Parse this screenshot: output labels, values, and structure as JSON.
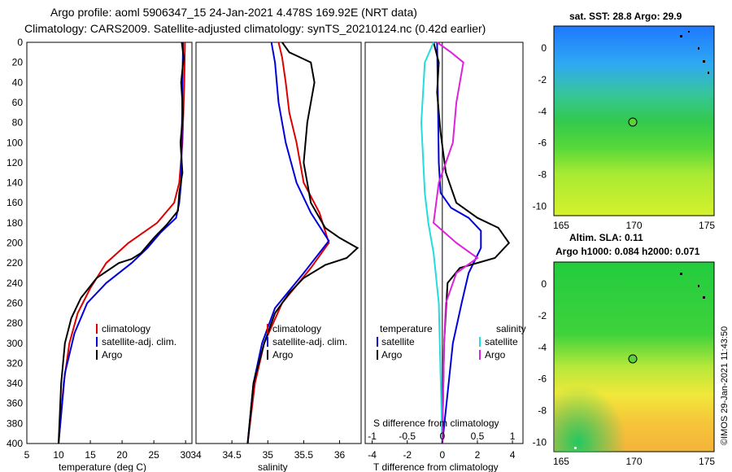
{
  "title_line1": "Argo profile: aoml 5906347_15 24-Jan-2021 4.478S 169.92E (NRT data)",
  "title_line2": "Climatology: CARS2009. Satellite-adjusted climatology: synTS_20210124.nc (0.42d earlier)",
  "colors": {
    "climatology": "#dd0000",
    "satellite": "#0000dd",
    "argo": "#000000",
    "cyan": "#22dddd",
    "magenta": "#dd22dd"
  },
  "depth_ticks": [
    "0",
    "20",
    "40",
    "60",
    "80",
    "100",
    "120",
    "140",
    "160",
    "180",
    "200",
    "220",
    "240",
    "260",
    "280",
    "300",
    "320",
    "340",
    "360",
    "380",
    "400"
  ],
  "chart_data": [
    {
      "type": "line",
      "panel": "temperature",
      "xlabel": "temperature (deg C)",
      "xlim": [
        5,
        31
      ],
      "xticks": [
        {
          "v": 5,
          "t": "5"
        },
        {
          "v": 10,
          "t": "10"
        },
        {
          "v": 15,
          "t": "15"
        },
        {
          "v": 20,
          "t": "20"
        },
        {
          "v": 25,
          "t": "25"
        },
        {
          "v": 30,
          "t": "30"
        }
      ],
      "ylim": [
        0,
        400
      ],
      "legend": [
        "climatology",
        "satellite-adj. clim.",
        "Argo"
      ],
      "series": [
        {
          "name": "climatology",
          "color": "climatology",
          "points": [
            [
              29.9,
              0
            ],
            [
              29.8,
              40
            ],
            [
              29.5,
              100
            ],
            [
              29.0,
              140
            ],
            [
              28.2,
              160
            ],
            [
              25.5,
              180
            ],
            [
              21,
              200
            ],
            [
              17.5,
              220
            ],
            [
              15,
              245
            ],
            [
              13,
              270
            ],
            [
              11.7,
              300
            ],
            [
              10.8,
              340
            ],
            [
              10.0,
              400
            ]
          ]
        },
        {
          "name": "satellite-adj. clim.",
          "color": "satellite",
          "points": [
            [
              29.6,
              0
            ],
            [
              29.5,
              40
            ],
            [
              29.4,
              100
            ],
            [
              29.3,
              140
            ],
            [
              29.0,
              160
            ],
            [
              28.5,
              175
            ],
            [
              26,
              190
            ],
            [
              24,
              205
            ],
            [
              21.5,
              220
            ],
            [
              17.5,
              240
            ],
            [
              14.5,
              260
            ],
            [
              12.5,
              290
            ],
            [
              11,
              330
            ],
            [
              10.0,
              400
            ]
          ]
        },
        {
          "name": "Argo",
          "color": "argo",
          "points": [
            [
              29.4,
              0
            ],
            [
              29.7,
              15
            ],
            [
              29.3,
              40
            ],
            [
              29.6,
              70
            ],
            [
              29.2,
              100
            ],
            [
              29.5,
              130
            ],
            [
              29.0,
              150
            ],
            [
              28.8,
              168
            ],
            [
              27,
              182
            ],
            [
              25,
              195
            ],
            [
              23,
              210
            ],
            [
              21.5,
              216
            ],
            [
              19.5,
              220
            ],
            [
              16,
              235
            ],
            [
              13.5,
              255
            ],
            [
              12,
              275
            ],
            [
              11,
              300
            ],
            [
              10.4,
              340
            ],
            [
              10.0,
              400
            ]
          ]
        }
      ]
    },
    {
      "type": "line",
      "panel": "salinity",
      "xlabel": "salinity",
      "xlim": [
        34,
        36.3
      ],
      "xticks": [
        {
          "v": 34,
          "t": "34"
        },
        {
          "v": 34.5,
          "t": "34.5"
        },
        {
          "v": 35,
          "t": "35"
        },
        {
          "v": 35.5,
          "t": "35.5"
        },
        {
          "v": 36,
          "t": "36"
        }
      ],
      "ylim": [
        0,
        400
      ],
      "legend": [
        "climatology",
        "satellite-adj. clim.",
        "Argo"
      ],
      "series": [
        {
          "name": "climatology",
          "color": "climatology",
          "points": [
            [
              35.15,
              0
            ],
            [
              35.2,
              15
            ],
            [
              35.25,
              40
            ],
            [
              35.3,
              70
            ],
            [
              35.4,
              100
            ],
            [
              35.5,
              140
            ],
            [
              35.72,
              170
            ],
            [
              35.85,
              200
            ],
            [
              35.6,
              225
            ],
            [
              35.2,
              260
            ],
            [
              34.95,
              300
            ],
            [
              34.82,
              340
            ],
            [
              34.72,
              400
            ]
          ]
        },
        {
          "name": "satellite-adj. clim.",
          "color": "satellite",
          "points": [
            [
              35.05,
              0
            ],
            [
              35.1,
              20
            ],
            [
              35.15,
              60
            ],
            [
              35.25,
              100
            ],
            [
              35.4,
              140
            ],
            [
              35.6,
              170
            ],
            [
              35.85,
              198
            ],
            [
              35.5,
              230
            ],
            [
              35.1,
              265
            ],
            [
              34.92,
              300
            ],
            [
              34.8,
              340
            ],
            [
              34.72,
              400
            ]
          ]
        },
        {
          "name": "Argo",
          "color": "argo",
          "points": [
            [
              35.2,
              0
            ],
            [
              35.3,
              10
            ],
            [
              35.45,
              15
            ],
            [
              35.6,
              20
            ],
            [
              35.65,
              40
            ],
            [
              35.55,
              80
            ],
            [
              35.5,
              120
            ],
            [
              35.6,
              160
            ],
            [
              35.8,
              185
            ],
            [
              36.0,
              195
            ],
            [
              36.25,
              205
            ],
            [
              36.1,
              215
            ],
            [
              35.8,
              222
            ],
            [
              35.5,
              235
            ],
            [
              35.3,
              250
            ],
            [
              35.1,
              270
            ],
            [
              34.95,
              300
            ],
            [
              34.8,
              340
            ],
            [
              34.72,
              400
            ]
          ]
        }
      ]
    },
    {
      "type": "line",
      "panel": "differences",
      "xlabel": "T difference from climatology",
      "xlim": [
        -4.4,
        4.6
      ],
      "xticks": [
        {
          "v": -4,
          "t": "-4"
        },
        {
          "v": -2,
          "t": "-2"
        },
        {
          "v": 0,
          "t": "0"
        },
        {
          "v": 2,
          "t": "2"
        },
        {
          "v": 4,
          "t": "4"
        }
      ],
      "xlabel_top": "S difference from climatology",
      "xticks_top": [
        {
          "v": -4,
          "t": "-1"
        },
        {
          "v": -2,
          "t": "-0.5"
        },
        {
          "v": 0,
          "t": "0"
        },
        {
          "v": 2,
          "t": "0.5"
        },
        {
          "v": 4,
          "t": "1"
        }
      ],
      "ylim": [
        0,
        400
      ],
      "legend_left_title": "temperature",
      "legend_right_title": "salinity",
      "legend_left": [
        "satellite",
        "Argo"
      ],
      "legend_right": [
        "satellite",
        "Argo"
      ],
      "series": [
        {
          "name": "temperature satellite",
          "color": "satellite",
          "points": [
            [
              -0.3,
              0
            ],
            [
              -0.25,
              60
            ],
            [
              -0.2,
              120
            ],
            [
              -0.1,
              150
            ],
            [
              0.5,
              165
            ],
            [
              1.5,
              175
            ],
            [
              2.2,
              188
            ],
            [
              2.2,
              205
            ],
            [
              1.5,
              230
            ],
            [
              1.1,
              260
            ],
            [
              0.6,
              300
            ],
            [
              0.3,
              350
            ],
            [
              0,
              400
            ]
          ]
        },
        {
          "name": "temperature Argo",
          "color": "argo",
          "points": [
            [
              -0.5,
              0
            ],
            [
              -0.2,
              20
            ],
            [
              -0.3,
              50
            ],
            [
              -0.1,
              90
            ],
            [
              0.2,
              130
            ],
            [
              0.8,
              160
            ],
            [
              2.0,
              175
            ],
            [
              3.2,
              185
            ],
            [
              3.8,
              200
            ],
            [
              3.0,
              215
            ],
            [
              1.0,
              225
            ],
            [
              0.3,
              240
            ],
            [
              0.1,
              300
            ],
            [
              0,
              400
            ]
          ]
        },
        {
          "name": "salinity satellite",
          "color": "cyan",
          "points": [
            [
              -0.5,
              0
            ],
            [
              -1.0,
              20
            ],
            [
              -1.2,
              80
            ],
            [
              -1.0,
              150
            ],
            [
              -0.8,
              180
            ],
            [
              -0.5,
              210
            ],
            [
              -0.2,
              260
            ],
            [
              0,
              400
            ]
          ]
        },
        {
          "name": "salinity Argo",
          "color": "magenta",
          "points": [
            [
              -0.3,
              0
            ],
            [
              0.5,
              10
            ],
            [
              1.2,
              20
            ],
            [
              0.8,
              60
            ],
            [
              0.6,
              100
            ],
            [
              -0.2,
              140
            ],
            [
              -0.5,
              180
            ],
            [
              0.8,
              200
            ],
            [
              2.0,
              215
            ],
            [
              0.8,
              230
            ],
            [
              0.2,
              260
            ],
            [
              0.1,
              300
            ],
            [
              0,
              400
            ]
          ]
        }
      ]
    },
    {
      "type": "heatmap",
      "panel": "sst_map",
      "title": "sat. SST: 28.8 Argo: 29.9",
      "xticks": [
        "165",
        "170",
        "175"
      ],
      "yticks": [
        "0",
        "-2",
        "-4",
        "-6",
        "-8",
        "-10"
      ],
      "marker_lon": 170,
      "marker_lat": -4.5
    },
    {
      "type": "heatmap",
      "panel": "sla_map",
      "title": "Altim. SLA: 0.11",
      "subtitle": "Argo h1000: 0.084 h2000: 0.071",
      "xticks": [
        "165",
        "170",
        "175"
      ],
      "yticks": [
        "0",
        "-2",
        "-4",
        "-6",
        "-8",
        "-10"
      ],
      "marker_lon": 170,
      "marker_lat": -4.5
    }
  ],
  "credit": "©IMOS 29-Jan-2021 11:43:50"
}
